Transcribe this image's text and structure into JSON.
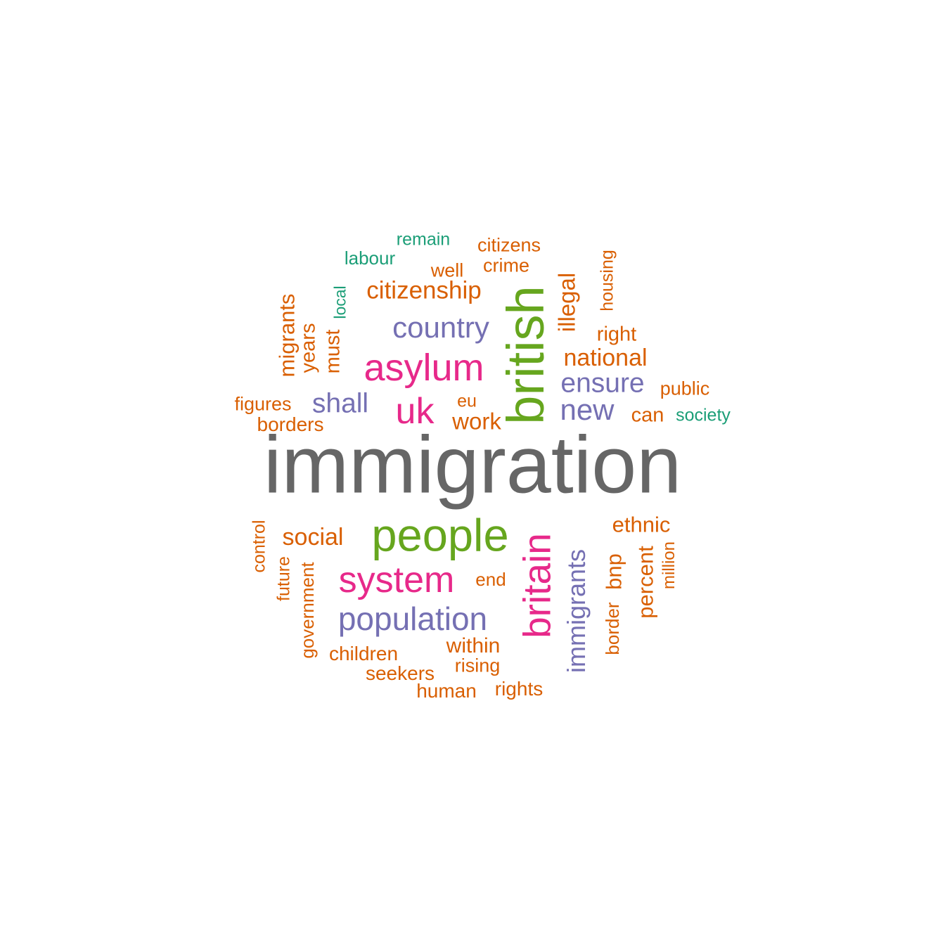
{
  "palette": {
    "gray": "#666666",
    "green": "#66a61e",
    "pink": "#e7298a",
    "purple": "#7570b3",
    "orange": "#d95f02",
    "teal": "#1b9e77"
  },
  "words": [
    {
      "text": "immigration",
      "color": "gray",
      "vertical": false
    },
    {
      "text": "british",
      "color": "green",
      "vertical": true
    },
    {
      "text": "people",
      "color": "green",
      "vertical": false
    },
    {
      "text": "britain",
      "color": "pink",
      "vertical": true
    },
    {
      "text": "asylum",
      "color": "pink",
      "vertical": false
    },
    {
      "text": "system",
      "color": "pink",
      "vertical": false
    },
    {
      "text": "uk",
      "color": "pink",
      "vertical": false
    },
    {
      "text": "population",
      "color": "purple",
      "vertical": false
    },
    {
      "text": "country",
      "color": "purple",
      "vertical": false
    },
    {
      "text": "immigrants",
      "color": "purple",
      "vertical": true
    },
    {
      "text": "ensure",
      "color": "purple",
      "vertical": false
    },
    {
      "text": "new",
      "color": "purple",
      "vertical": false
    },
    {
      "text": "shall",
      "color": "purple",
      "vertical": false
    },
    {
      "text": "citizenship",
      "color": "orange",
      "vertical": false
    },
    {
      "text": "national",
      "color": "orange",
      "vertical": false
    },
    {
      "text": "social",
      "color": "orange",
      "vertical": false
    },
    {
      "text": "illegal",
      "color": "orange",
      "vertical": true
    },
    {
      "text": "migrants",
      "color": "orange",
      "vertical": true
    },
    {
      "text": "percent",
      "color": "orange",
      "vertical": true
    },
    {
      "text": "ethnic",
      "color": "orange",
      "vertical": false
    },
    {
      "text": "work",
      "color": "orange",
      "vertical": false
    },
    {
      "text": "years",
      "color": "orange",
      "vertical": true
    },
    {
      "text": "must",
      "color": "orange",
      "vertical": true
    },
    {
      "text": "bnp",
      "color": "orange",
      "vertical": true
    },
    {
      "text": "within",
      "color": "orange",
      "vertical": false
    },
    {
      "text": "right",
      "color": "orange",
      "vertical": false
    },
    {
      "text": "borders",
      "color": "orange",
      "vertical": false
    },
    {
      "text": "can",
      "color": "orange",
      "vertical": false
    },
    {
      "text": "children",
      "color": "orange",
      "vertical": false
    },
    {
      "text": "public",
      "color": "orange",
      "vertical": false
    },
    {
      "text": "government",
      "color": "orange",
      "vertical": true
    },
    {
      "text": "crime",
      "color": "orange",
      "vertical": false
    },
    {
      "text": "citizens",
      "color": "orange",
      "vertical": false
    },
    {
      "text": "figures",
      "color": "orange",
      "vertical": false
    },
    {
      "text": "rising",
      "color": "orange",
      "vertical": false
    },
    {
      "text": "human",
      "color": "orange",
      "vertical": false
    },
    {
      "text": "seekers",
      "color": "orange",
      "vertical": false
    },
    {
      "text": "rights",
      "color": "orange",
      "vertical": false
    },
    {
      "text": "well",
      "color": "orange",
      "vertical": false
    },
    {
      "text": "end",
      "color": "orange",
      "vertical": false
    },
    {
      "text": "eu",
      "color": "orange",
      "vertical": false
    },
    {
      "text": "housing",
      "color": "orange",
      "vertical": true
    },
    {
      "text": "control",
      "color": "orange",
      "vertical": true
    },
    {
      "text": "future",
      "color": "orange",
      "vertical": true
    },
    {
      "text": "border",
      "color": "orange",
      "vertical": true
    },
    {
      "text": "million",
      "color": "orange",
      "vertical": true
    },
    {
      "text": "remain",
      "color": "teal",
      "vertical": false
    },
    {
      "text": "labour",
      "color": "teal",
      "vertical": false
    },
    {
      "text": "society",
      "color": "teal",
      "vertical": false
    },
    {
      "text": "local",
      "color": "teal",
      "vertical": true
    }
  ]
}
